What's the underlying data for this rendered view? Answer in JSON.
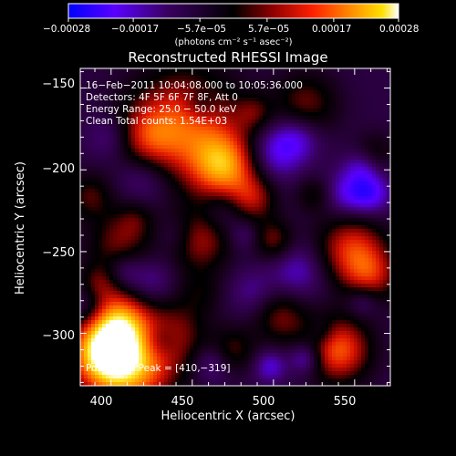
{
  "chart_data": {
    "type": "heatmap",
    "title": "Reconstructed RHESSI Image",
    "xlabel": "Heliocentric X (arcsec)",
    "ylabel": "Heliocentric Y (arcsec)",
    "xlim": [
      381,
      572
    ],
    "ylim": [
      -332,
      -138
    ],
    "x_ticks": [
      {
        "v": 400,
        "label": "400"
      },
      {
        "v": 450,
        "label": "450"
      },
      {
        "v": 500,
        "label": "500"
      },
      {
        "v": 550,
        "label": "550"
      }
    ],
    "y_ticks": [
      {
        "v": -150,
        "label": "−150"
      },
      {
        "v": -200,
        "label": "−200"
      },
      {
        "v": -250,
        "label": "−250"
      },
      {
        "v": -300,
        "label": "−300"
      }
    ],
    "colorbar": {
      "range": [
        -0.00028,
        0.00028
      ],
      "tick_labels": [
        "−0.00028",
        "−0.00017",
        "−5.7e−05",
        "5.7e−05",
        "0.00017",
        "0.00028"
      ],
      "unit_label": "(photons cm⁻² s⁻¹ asec⁻²)",
      "colors": [
        "#0000ff",
        "#7a00ff",
        "#1a001a",
        "#000000",
        "#a00000",
        "#ff2000",
        "#ff8000",
        "#ffd000",
        "#ffffff"
      ]
    },
    "annotations": [
      "16−Feb−2011 10:04:08.000 to 10:05:36.000",
      "Detectors: 4F 5F 6F 7F 8F, Att 0",
      "Energy Range: 25.0 − 50.0 keV",
      "Clean    Total counts: 1.54E+03"
    ],
    "peak_label": "Position of Peak = [410,−319]",
    "peak": [
      410,
      -319
    ],
    "grid": false,
    "blobs": [
      [
        410,
        -318,
        20,
        0.0003
      ],
      [
        395,
        -310,
        14,
        0.00022
      ],
      [
        470,
        -198,
        15,
        0.00024
      ],
      [
        445,
        -172,
        24,
        0.0002
      ],
      [
        422,
        -182,
        14,
        0.00012
      ],
      [
        455,
        -243,
        14,
        0.00014
      ],
      [
        488,
        -218,
        10,
        0.00012
      ],
      [
        405,
        -245,
        14,
        0.00012
      ],
      [
        387,
        -216,
        10,
        0.0001
      ],
      [
        405,
        -290,
        12,
        0.00016
      ],
      [
        440,
        -300,
        14,
        0.0001
      ],
      [
        392,
        -270,
        9,
        0.0001
      ],
      [
        500,
        -243,
        9,
        0.00012
      ],
      [
        520,
        -160,
        14,
        0.00012
      ],
      [
        548,
        -248,
        15,
        0.00018
      ],
      [
        560,
        -265,
        12,
        0.00014
      ],
      [
        540,
        -310,
        14,
        0.00022
      ],
      [
        505,
        -290,
        12,
        0.00012
      ],
      [
        475,
        -310,
        10,
        0.0001
      ],
      [
        525,
        -215,
        8,
        8e-05
      ],
      [
        562,
        -190,
        9,
        8e-05
      ],
      [
        488,
        -165,
        8,
        8e-05
      ],
      [
        455,
        -275,
        10,
        6e-05
      ],
      [
        415,
        -230,
        8,
        6e-05
      ],
      [
        500,
        -190,
        12,
        -0.00012
      ],
      [
        515,
        -180,
        10,
        -0.0001
      ],
      [
        420,
        -203,
        12,
        -9e-05
      ],
      [
        400,
        -180,
        10,
        -8e-05
      ],
      [
        425,
        -268,
        10,
        -7e-05
      ],
      [
        385,
        -283,
        9,
        -8e-05
      ],
      [
        408,
        -262,
        8,
        -8e-05
      ],
      [
        468,
        -225,
        9,
        -7e-05
      ],
      [
        515,
        -262,
        12,
        -9e-05
      ],
      [
        487,
        -275,
        10,
        -6e-05
      ],
      [
        545,
        -215,
        10,
        -0.0001
      ],
      [
        555,
        -198,
        8,
        -9e-05
      ],
      [
        560,
        -215,
        9,
        -0.00012
      ],
      [
        430,
        -305,
        8,
        -9e-05
      ],
      [
        462,
        -318,
        8,
        -8e-05
      ],
      [
        520,
        -315,
        7,
        -0.00012
      ],
      [
        498,
        -320,
        7,
        -0.0001
      ],
      [
        555,
        -280,
        7,
        -8e-05
      ],
      [
        440,
        -240,
        8,
        -5e-05
      ],
      [
        482,
        -240,
        7,
        -6e-05
      ],
      [
        455,
        -160,
        7,
        -6e-05
      ],
      [
        530,
        -300,
        6,
        -6e-05
      ]
    ]
  }
}
